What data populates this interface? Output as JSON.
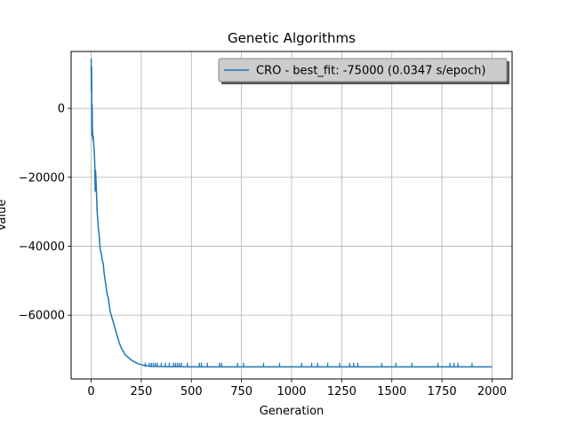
{
  "chart_data": {
    "type": "line",
    "title": "Genetic Algorithms",
    "xlabel": "Generation",
    "ylabel": "Value",
    "xlim": [
      -100,
      2100
    ],
    "ylim": [
      -78500,
      16500
    ],
    "xticks": [
      0,
      250,
      500,
      750,
      1000,
      1250,
      1500,
      1750,
      2000
    ],
    "yticks": [
      0,
      -20000,
      -40000,
      -60000
    ],
    "xtick_labels": [
      "0",
      "250",
      "500",
      "750",
      "1000",
      "1250",
      "1500",
      "1750",
      "2000"
    ],
    "ytick_labels": [
      "0",
      "−20000",
      "−40000",
      "−60000"
    ],
    "grid": true,
    "legend_position": "top-right",
    "series": [
      {
        "name": "CRO - best_fit: -75000 (0.0347 s/epoch)",
        "color": "#1f77b4",
        "x": [
          0,
          1,
          2,
          3,
          4,
          5,
          6,
          8,
          10,
          12,
          15,
          18,
          20,
          22,
          25,
          30,
          35,
          40,
          45,
          50,
          55,
          60,
          65,
          70,
          75,
          80,
          85,
          90,
          95,
          100,
          110,
          120,
          130,
          140,
          150,
          160,
          170,
          180,
          190,
          200,
          220,
          240,
          260,
          280,
          300,
          350,
          400,
          450,
          500,
          600,
          700,
          800,
          1000,
          1200,
          1500,
          1800,
          2000
        ],
        "y": [
          14500,
          5000,
          12000,
          0,
          -8000,
          1000,
          -5000,
          -9000,
          -8000,
          -10000,
          -12000,
          -16000,
          -24000,
          -18000,
          -22000,
          -30000,
          -34000,
          -37000,
          -41000,
          -42000,
          -44000,
          -45000,
          -48000,
          -50000,
          -52000,
          -54000,
          -55000,
          -57000,
          -59000,
          -60000,
          -62000,
          -64000,
          -66000,
          -68000,
          -69500,
          -70500,
          -71500,
          -72000,
          -72500,
          -73000,
          -73700,
          -74200,
          -74500,
          -74700,
          -74850,
          -74900,
          -74950,
          -74970,
          -74980,
          -74990,
          -74995,
          -75000,
          -75000,
          -75000,
          -75000,
          -75000,
          -75000
        ]
      }
    ],
    "spikes": {
      "x": [
        270,
        290,
        300,
        310,
        320,
        330,
        350,
        370,
        390,
        410,
        420,
        430,
        440,
        450,
        480,
        540,
        550,
        580,
        640,
        650,
        730,
        760,
        860,
        940,
        1050,
        1100,
        1130,
        1180,
        1240,
        1290,
        1310,
        1330,
        1450,
        1520,
        1600,
        1730,
        1790,
        1810,
        1830,
        1900
      ],
      "y": -73800
    }
  }
}
